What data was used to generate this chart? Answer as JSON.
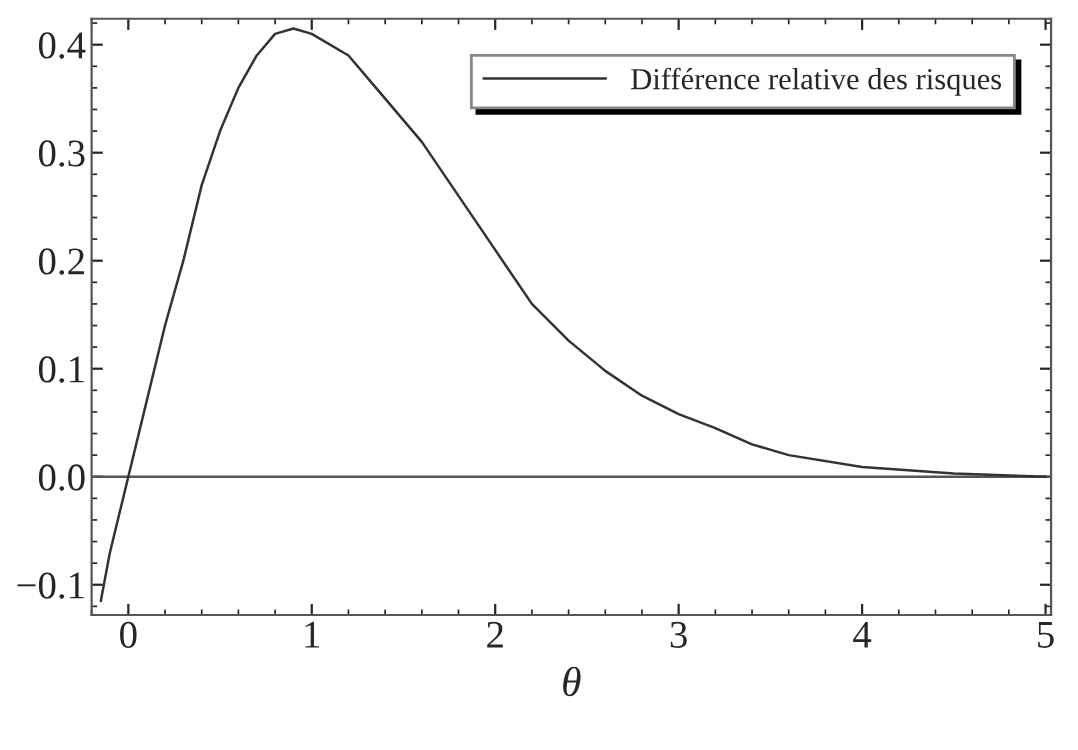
{
  "chart_data": {
    "type": "line",
    "xlabel": "θ",
    "series": [
      {
        "name": "Différence relative des risques",
        "color": "#333333",
        "x": [
          -0.15,
          -0.1,
          -0.05,
          0,
          0.1,
          0.2,
          0.3,
          0.4,
          0.5,
          0.6,
          0.7,
          0.8,
          0.9,
          1.0,
          1.2,
          1.4,
          1.6,
          1.8,
          2.0,
          2.2,
          2.4,
          2.6,
          2.8,
          3.0,
          3.2,
          3.4,
          3.6,
          4.0,
          4.5,
          5.0
        ],
        "values": [
          -0.115,
          -0.07,
          -0.035,
          0,
          0.07,
          0.14,
          0.2,
          0.27,
          0.32,
          0.36,
          0.39,
          0.41,
          0.415,
          0.41,
          0.39,
          0.35,
          0.31,
          0.26,
          0.21,
          0.16,
          0.126,
          0.098,
          0.075,
          0.058,
          0.045,
          0.03,
          0.02,
          0.009,
          0.003,
          0.0
        ]
      }
    ],
    "xlim": [
      -0.2,
      5.03
    ],
    "ylim": [
      -0.128,
      0.424
    ],
    "xticks": [
      0,
      1,
      2,
      3,
      4,
      5
    ],
    "yticks": [
      {
        "value": -0.1,
        "label": "−0.1"
      },
      {
        "value": 0,
        "label": "0.0"
      },
      0.1,
      0.2,
      0.3,
      0.4
    ],
    "ref_lines": [
      {
        "axis": "y",
        "value": 0,
        "color": "#555555"
      }
    ],
    "legend": "top right",
    "grid": false,
    "line_style": "solid",
    "marker": "none"
  }
}
